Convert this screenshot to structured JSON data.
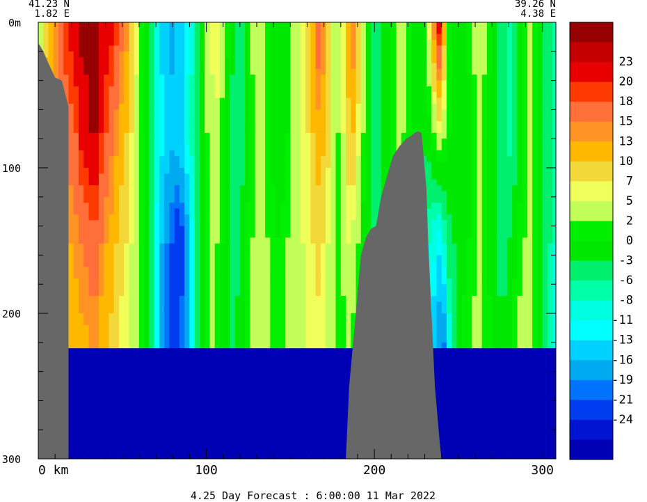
{
  "chart_data": {
    "type": "heatmap",
    "title": "4.25 Day Forecast :  6:00:00  11 Mar 2022",
    "corner_left": {
      "lat": "41.23 N",
      "lon": "1.82 E"
    },
    "corner_right": {
      "lat": "39.26 N",
      "lon": "4.38 E"
    },
    "x_ticks": [
      "0 km",
      "100",
      "200",
      "300"
    ],
    "x_tick_values": [
      0,
      100,
      200,
      300
    ],
    "xlim": [
      0,
      308
    ],
    "y_ticks": [
      "0m",
      "100",
      "200",
      "300"
    ],
    "y_tick_values": [
      0,
      100,
      200,
      300
    ],
    "ylim": [
      0,
      300
    ],
    "colorbar": {
      "labels": [
        "23",
        "20",
        "18",
        "15",
        "13",
        "10",
        "7",
        "5",
        "2",
        "0",
        "-3",
        "-6",
        "-8",
        "-11",
        "-13",
        "-16",
        "-19",
        "-21",
        "-24"
      ],
      "colors": [
        "#960000",
        "#c40000",
        "#e80000",
        "#ff3a00",
        "#ff6f3a",
        "#ff9324",
        "#ffb800",
        "#f2d838",
        "#f1ff5a",
        "#c3ff5a",
        "#00f000",
        "#00e800",
        "#00f06e",
        "#00ffa8",
        "#00ffe0",
        "#00ffff",
        "#00d2ff",
        "#00aaf0",
        "#0073ff",
        "#003cf0",
        "#0014d2",
        "#0000b4"
      ]
    },
    "land_mask": [
      {
        "x": [
          0,
          0.5,
          3,
          6,
          10,
          14,
          18,
          18,
          16,
          12,
          8,
          4,
          0
        ],
        "y": [
          16,
          15,
          20,
          28,
          38,
          40,
          58,
          300,
          300,
          300,
          300,
          300,
          300
        ]
      },
      {
        "x": [
          183,
          185,
          189,
          192,
          195,
          198,
          201,
          204,
          207,
          211,
          215,
          219,
          222,
          224,
          226,
          228,
          229,
          231,
          232,
          234,
          236,
          239,
          240,
          183
        ],
        "y": [
          300,
          250,
          200,
          160,
          148,
          142,
          140,
          120,
          108,
          92,
          85,
          80,
          78,
          76,
          75,
          76,
          88,
          115,
          150,
          200,
          250,
          290,
          300,
          300
        ]
      }
    ],
    "columns": [
      [
        0,
        2,
        2,
        2,
        2
      ],
      [
        3,
        9,
        12,
        7,
        7
      ],
      [
        6,
        13,
        12,
        9,
        8
      ],
      [
        9,
        15,
        13,
        10,
        8
      ],
      [
        12,
        18,
        15,
        11,
        9
      ],
      [
        15,
        20,
        16,
        12,
        10
      ],
      [
        18,
        21,
        17,
        13,
        10
      ],
      [
        21,
        23,
        18,
        14,
        11
      ],
      [
        24,
        24,
        21,
        15,
        12
      ],
      [
        27,
        24,
        22,
        16,
        12
      ],
      [
        30,
        24,
        23,
        17,
        13
      ],
      [
        33,
        24,
        23,
        17,
        13
      ],
      [
        36,
        23,
        20,
        15,
        11
      ],
      [
        39,
        22,
        18,
        13,
        10
      ],
      [
        42,
        21,
        16,
        12,
        9
      ],
      [
        45,
        19,
        14,
        10,
        7
      ],
      [
        48,
        16,
        12,
        8,
        6
      ],
      [
        51,
        14,
        10,
        7,
        5
      ],
      [
        54,
        10,
        7,
        5,
        3
      ],
      [
        57,
        6,
        4,
        2,
        2
      ],
      [
        60,
        2,
        1,
        1,
        1
      ],
      [
        63,
        -3,
        -2,
        -3,
        -3
      ],
      [
        66,
        -6,
        -5,
        -6,
        -6
      ],
      [
        69,
        -10,
        -9,
        -12,
        -12
      ],
      [
        72,
        -14,
        -12,
        -16,
        -18
      ],
      [
        75,
        -16,
        -14,
        -19,
        -20
      ],
      [
        78,
        -17,
        -15,
        -21,
        -22
      ],
      [
        81,
        -16,
        -14,
        -24,
        -22
      ],
      [
        84,
        -15,
        -13,
        -22,
        -20
      ],
      [
        87,
        -12,
        -10,
        -18,
        -16
      ],
      [
        90,
        -9,
        -7,
        -12,
        -11
      ],
      [
        93,
        -4,
        -4,
        -6,
        -6
      ],
      [
        96,
        -1,
        -1,
        -3,
        -2
      ],
      [
        99,
        3,
        2,
        0,
        1
      ],
      [
        102,
        6,
        4,
        2,
        2
      ],
      [
        105,
        7,
        4,
        2,
        1
      ],
      [
        108,
        4,
        1,
        0,
        -2
      ],
      [
        111,
        1,
        -2,
        -3,
        -3
      ],
      [
        114,
        -2,
        -4,
        -4,
        -3
      ],
      [
        117,
        -4,
        -5,
        -4,
        -2
      ],
      [
        120,
        -3,
        -4,
        -2,
        0
      ],
      [
        123,
        0,
        -2,
        1,
        2
      ],
      [
        126,
        3,
        1,
        2,
        3
      ],
      [
        129,
        5,
        3,
        3,
        4
      ],
      [
        132,
        4,
        2,
        3,
        4
      ],
      [
        135,
        2,
        1,
        2,
        3
      ],
      [
        138,
        0,
        -1,
        1,
        2
      ],
      [
        141,
        -2,
        -3,
        0,
        1
      ],
      [
        144,
        -3,
        -2,
        1,
        1
      ],
      [
        147,
        -1,
        0,
        2,
        2
      ],
      [
        150,
        2,
        2,
        3,
        3
      ],
      [
        153,
        4,
        3,
        4,
        4
      ],
      [
        156,
        6,
        5,
        5,
        4
      ],
      [
        159,
        9,
        7,
        6,
        5
      ],
      [
        162,
        13,
        10,
        7,
        5
      ],
      [
        165,
        17,
        12,
        8,
        6
      ],
      [
        168,
        15,
        11,
        7,
        5
      ],
      [
        171,
        10,
        8,
        5,
        3
      ],
      [
        174,
        5,
        4,
        3,
        2
      ],
      [
        177,
        2,
        2,
        1,
        0
      ],
      [
        180,
        6,
        5,
        3,
        1
      ],
      [
        183,
        12,
        9,
        5,
        2
      ],
      [
        186,
        15,
        10,
        4,
        1
      ],
      [
        189,
        10,
        6,
        2,
        0
      ],
      [
        192,
        4,
        2,
        -1,
        -2
      ],
      [
        195,
        0,
        -2,
        -3,
        -3
      ],
      [
        198,
        -3,
        -4,
        -4,
        -4
      ],
      [
        201,
        -4,
        -5,
        -4,
        -3
      ],
      [
        204,
        -2,
        -3,
        -2,
        -2
      ],
      [
        207,
        0,
        -1,
        0,
        -1
      ],
      [
        210,
        2,
        1,
        1,
        0
      ],
      [
        213,
        4,
        2,
        2,
        1
      ],
      [
        216,
        3,
        2,
        1,
        0
      ],
      [
        219,
        1,
        0,
        -1,
        -2
      ],
      [
        222,
        -1,
        -2,
        -3,
        -4
      ],
      [
        225,
        -2,
        -3,
        -5,
        -8
      ],
      [
        228,
        0,
        -2,
        -6,
        -10
      ],
      [
        231,
        6,
        -1,
        -8,
        -13
      ],
      [
        234,
        15,
        2,
        -10,
        -16
      ],
      [
        237,
        22,
        5,
        -12,
        -19
      ],
      [
        240,
        12,
        3,
        -8,
        -20
      ],
      [
        243,
        2,
        0,
        -4,
        -10
      ],
      [
        246,
        -2,
        -2,
        -3,
        -4
      ],
      [
        249,
        -3,
        -3,
        -2,
        0
      ],
      [
        252,
        -2,
        -3,
        -1,
        1
      ],
      [
        255,
        1,
        -1,
        0,
        2
      ],
      [
        258,
        3,
        1,
        1,
        3
      ],
      [
        261,
        4,
        2,
        2,
        3
      ],
      [
        264,
        3,
        1,
        1,
        2
      ],
      [
        267,
        1,
        -1,
        -1,
        1
      ],
      [
        270,
        -1,
        -3,
        -3,
        -1
      ],
      [
        273,
        -3,
        -5,
        -4,
        -2
      ],
      [
        276,
        -5,
        -6,
        -4,
        -2
      ],
      [
        279,
        -6,
        -7,
        -3,
        0
      ],
      [
        282,
        -4,
        -5,
        -1,
        2
      ],
      [
        285,
        -1,
        -2,
        1,
        3
      ],
      [
        288,
        2,
        1,
        2,
        3
      ],
      [
        291,
        3,
        2,
        2,
        2
      ],
      [
        294,
        2,
        1,
        1,
        1
      ],
      [
        297,
        0,
        -1,
        -1,
        -2
      ],
      [
        300,
        -3,
        -4,
        -4,
        -5
      ],
      [
        303,
        -6,
        -6,
        -6,
        -7
      ],
      [
        306,
        -8,
        -8,
        -8,
        -9
      ]
    ],
    "column_depths": [
      0,
      75,
      150,
      225,
      300
    ]
  }
}
